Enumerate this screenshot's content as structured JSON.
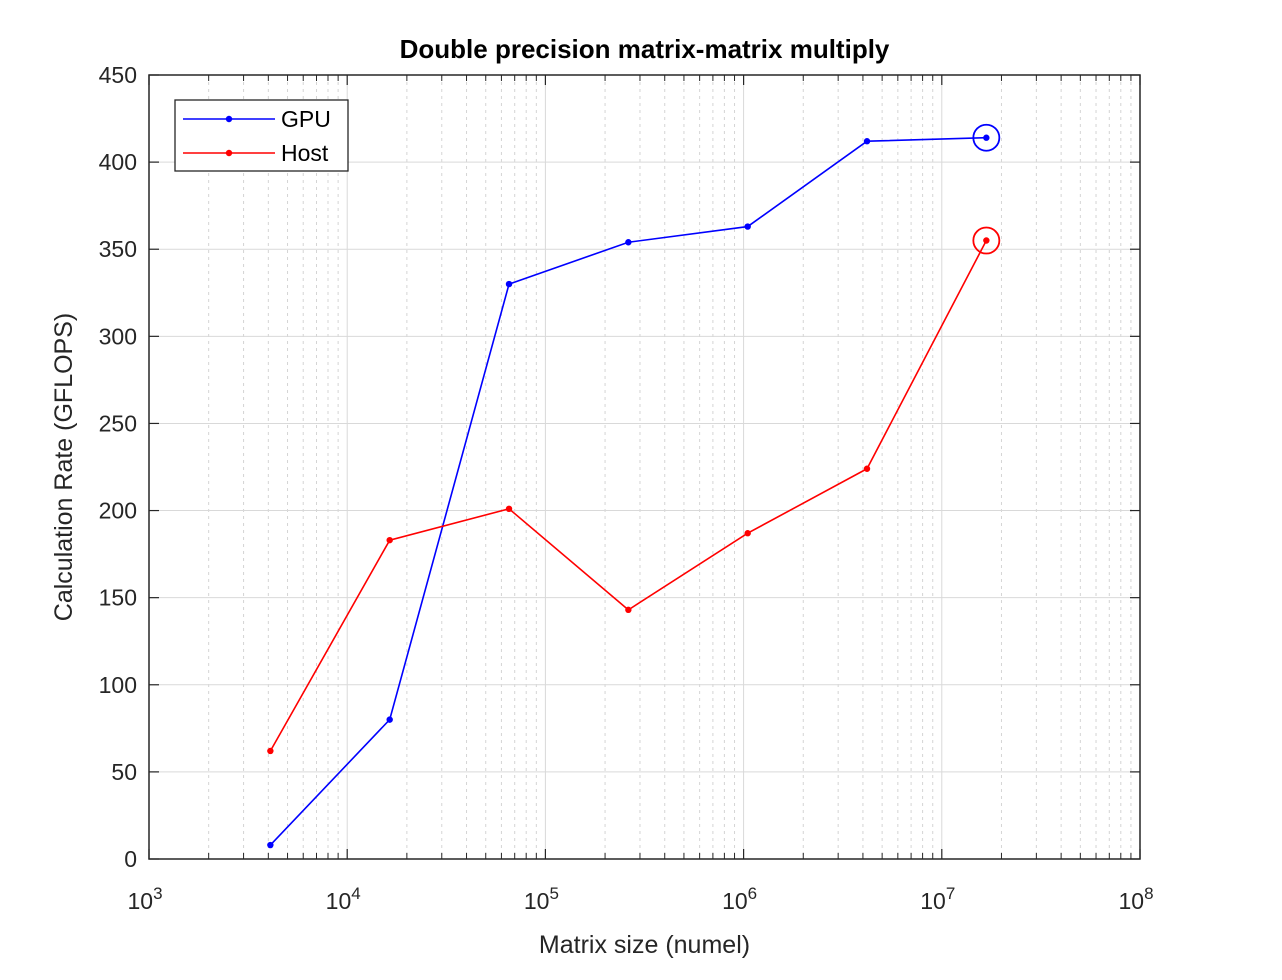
{
  "chart_data": {
    "type": "line",
    "title": "Double precision matrix-matrix multiply",
    "xlabel": "Matrix size (numel)",
    "ylabel": "Calculation Rate (GFLOPS)",
    "xscale": "log",
    "xlim": [
      1000,
      100000000
    ],
    "ylim": [
      0,
      450
    ],
    "yticks": [
      0,
      50,
      100,
      150,
      200,
      250,
      300,
      350,
      400,
      450
    ],
    "xtick_exponents": [
      3,
      4,
      5,
      6,
      7,
      8
    ],
    "grid": true,
    "minor_grid": true,
    "legend_position": "top-left",
    "x": [
      4096,
      16384,
      65536,
      262144,
      1048576,
      4194304,
      16777216
    ],
    "series": [
      {
        "name": "GPU",
        "color": "#0000ff",
        "values": [
          8,
          80,
          330,
          354,
          363,
          412,
          414
        ],
        "highlight": {
          "x": 16777216,
          "y": 414
        }
      },
      {
        "name": "Host",
        "color": "#ff0000",
        "values": [
          62,
          183,
          201,
          143,
          187,
          224,
          355
        ],
        "highlight": {
          "x": 16777216,
          "y": 355
        }
      }
    ]
  }
}
